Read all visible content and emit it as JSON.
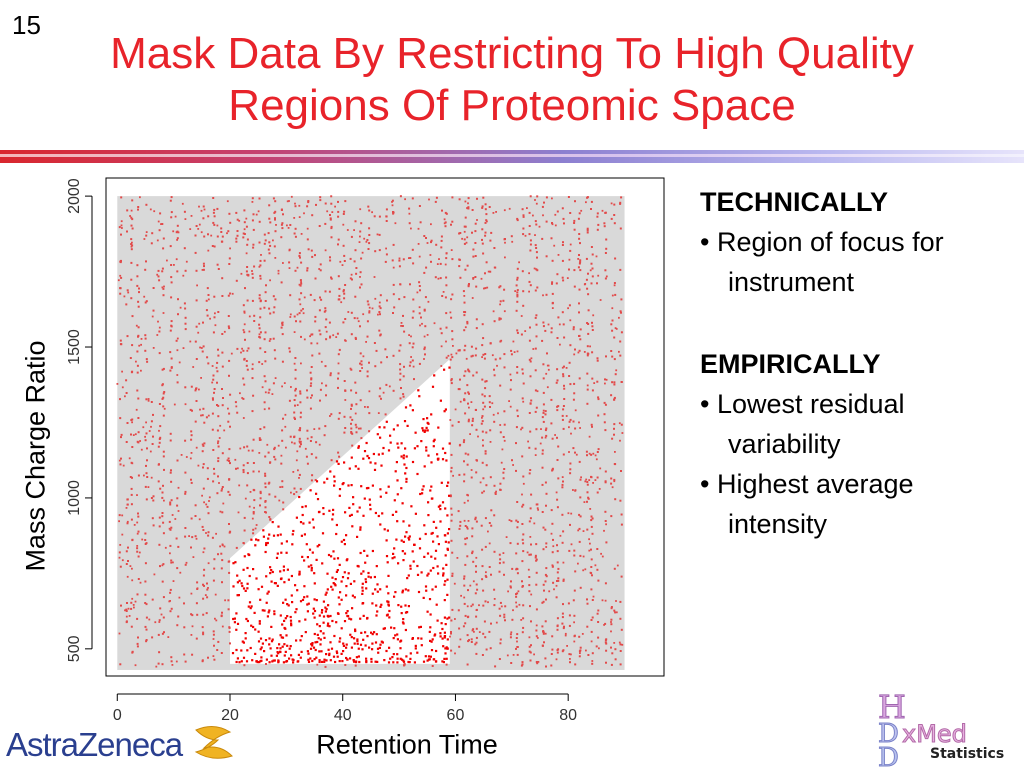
{
  "slide": {
    "number": "15"
  },
  "title": {
    "line1": "Mask Data By Restricting To High Quality",
    "line2": "Regions Of Proteomic Space"
  },
  "notes": {
    "technically": {
      "heading": "TECHNICALLY",
      "bullet": "•  Region of focus for instrument"
    },
    "empirically": {
      "heading": "EMPIRICALLY",
      "bullets": [
        "•  Lowest residual variability",
        "•  Highest average intensity"
      ]
    }
  },
  "logos": {
    "left": "AstraZeneca",
    "right_caption": "Statistics",
    "right_letters": [
      "H",
      "D",
      "xMed",
      "D"
    ]
  },
  "colors": {
    "title": "#e8232a",
    "points": "#e24a4a",
    "highlight_points": "#f00000",
    "mask_region": "#d9d9d9"
  },
  "chart_data": {
    "type": "scatter",
    "xlabel": "Retention Time",
    "ylabel": "Mass Charge Ratio",
    "xlim": [
      -2,
      97
    ],
    "ylim": [
      410,
      2060
    ],
    "xticks": [
      0,
      20,
      40,
      60,
      80
    ],
    "yticks": [
      500,
      1000,
      1500,
      2000
    ],
    "grid": false,
    "background_region": {
      "x": [
        0,
        90
      ],
      "y": [
        430,
        2000
      ]
    },
    "focus_region_polygon": [
      [
        20,
        450
      ],
      [
        20,
        800
      ],
      [
        59,
        1460
      ],
      [
        59,
        450
      ]
    ],
    "point_density": "dense vertical streaks of points across the full region; sparser bright red points inside the triangular focus region"
  }
}
